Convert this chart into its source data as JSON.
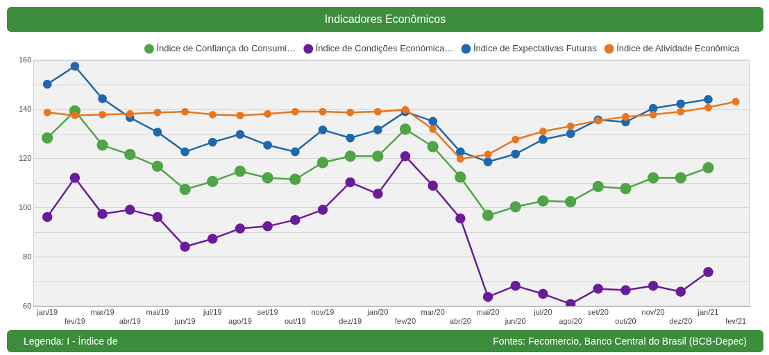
{
  "chart_data": {
    "type": "line",
    "title": "Indicadores Econômicos",
    "categories": [
      "jan/19",
      "fev/19",
      "mar/19",
      "abr/19",
      "mai/19",
      "jun/19",
      "jul/19",
      "ago/19",
      "set/19",
      "out/19",
      "nov/19",
      "dez/19",
      "jan/20",
      "fev/20",
      "mar/20",
      "abr/20",
      "mai/20",
      "jun/20",
      "jul/20",
      "ago/20",
      "set/20",
      "out/20",
      "nov/20",
      "dez/20",
      "jan/21",
      "fev/21"
    ],
    "series": [
      {
        "name": "Índice de Confiança do Consumi…",
        "color": "#4fa446",
        "values": [
          128.4,
          139.4,
          125.5,
          121.7,
          116.9,
          107.5,
          110.7,
          114.9,
          112.2,
          111.6,
          118.4,
          121,
          121,
          132,
          124.9,
          112.5,
          96.9,
          100.4,
          102.8,
          102.5,
          108.7,
          107.8,
          112.2,
          112.2,
          116.3,
          null
        ]
      },
      {
        "name": "Índice de Condições Económica…",
        "color": "#6a1b9a",
        "values": [
          96.3,
          112.2,
          97.5,
          99.2,
          96.3,
          84.2,
          87.4,
          91.6,
          92.5,
          95.1,
          99.2,
          110.4,
          105.7,
          121,
          109,
          95.7,
          63.8,
          68.3,
          65,
          60.9,
          67.1,
          66.5,
          68.3,
          65.9,
          73.9,
          null
        ]
      },
      {
        "name": "Índice de Expectativas Futuras",
        "color": "#1f68ad",
        "values": [
          150.3,
          157.6,
          144.4,
          136.7,
          130.8,
          122.8,
          126.7,
          129.9,
          125.5,
          122.8,
          131.7,
          128.4,
          131.7,
          139.1,
          135.2,
          122.8,
          118.7,
          121.9,
          127.8,
          130.2,
          135.8,
          134.9,
          140.5,
          142.3,
          144.1,
          null
        ]
      },
      {
        "name": "Índice de Atividade Econômica",
        "color": "#e8761f",
        "values": [
          138.8,
          137.6,
          137.9,
          138.2,
          138.8,
          139.1,
          137.9,
          137.6,
          138.2,
          139.1,
          139.1,
          138.8,
          139.1,
          139.9,
          132,
          119.9,
          121.7,
          127.8,
          131.1,
          133.2,
          135.5,
          137,
          137.9,
          139.1,
          140.8,
          143.2
        ]
      }
    ],
    "ylim": [
      60,
      160
    ],
    "yticks": [
      60,
      {
        "value": 70,
        "label": null
      },
      80,
      {
        "value": 90,
        "label": null
      },
      100,
      {
        "value": 110,
        "label": null
      },
      120,
      {
        "value": 130,
        "label": null
      },
      140,
      {
        "value": 150,
        "label": null
      },
      160
    ],
    "grid": "y",
    "legend": "top",
    "marker": "circle",
    "line_style": "solid",
    "annotations": [
      "Legenda: I - Índice de",
      "Fontes: Fecomercio, Banco Central do Brasil (BCB-Depec)"
    ]
  }
}
